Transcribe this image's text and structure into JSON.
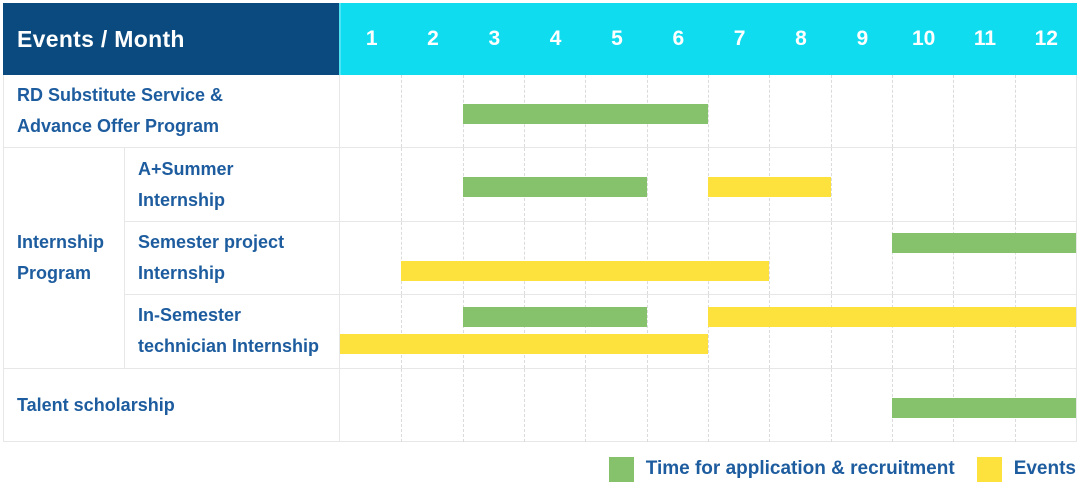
{
  "colors": {
    "navy": "#0B4A7E",
    "cyan": "#10DCF0",
    "cyan_divider": "#4DE3F3",
    "label_text": "#1D5C9E",
    "grid_solid": "#E7E7E7",
    "grid_dashed": "#DBDBDB",
    "white": "#FFFFFF"
  },
  "header": {
    "corner_label": "Events / Month"
  },
  "chart_data": {
    "type": "gantt",
    "x_axis": {
      "label": "Month",
      "range": [
        1,
        12
      ]
    },
    "months": [
      "1",
      "2",
      "3",
      "4",
      "5",
      "6",
      "7",
      "8",
      "9",
      "10",
      "11",
      "12"
    ],
    "series_colors": {
      "application": "#85C26B",
      "events": "#FDE23E"
    },
    "legend": [
      {
        "series": "application",
        "label": "Time for application & recruitment",
        "color": "#85C26B"
      },
      {
        "series": "events",
        "label": "Events",
        "color": "#FDE23E"
      }
    ],
    "group": {
      "label": "Internship Program",
      "label_lines": [
        "Internship",
        "Program"
      ],
      "covers_rows": [
        1,
        2,
        3
      ]
    },
    "rows": [
      {
        "label": "RD Substitute Service & Advance Offer Program",
        "label_lines": [
          "RD Substitute Service &",
          "Advance Offer Program"
        ],
        "lines": 1,
        "bars": [
          {
            "series": "application",
            "start_month": 3,
            "end_month": 6,
            "line": 0
          }
        ]
      },
      {
        "label": "A+Summer Internship",
        "label_lines": [
          "A+Summer",
          "Internship"
        ],
        "lines": 1,
        "bars": [
          {
            "series": "application",
            "start_month": 3,
            "end_month": 5,
            "line": 0
          },
          {
            "series": "events",
            "start_month": 7,
            "end_month": 8,
            "line": 0
          }
        ]
      },
      {
        "label": "Semester project Internship",
        "label_lines": [
          "Semester project",
          "Internship"
        ],
        "lines": 2,
        "bars": [
          {
            "series": "application",
            "start_month": 10,
            "end_month": 12,
            "line": 0
          },
          {
            "series": "events",
            "start_month": 2,
            "end_month": 7,
            "line": 1
          }
        ]
      },
      {
        "label": "In-Semester technician Internship",
        "label_lines": [
          "In-Semester",
          "technician Internship"
        ],
        "lines": 2,
        "bars": [
          {
            "series": "application",
            "start_month": 3,
            "end_month": 5,
            "line": 0
          },
          {
            "series": "events",
            "start_month": 7,
            "end_month": 12,
            "line": 0
          },
          {
            "series": "events",
            "start_month": 1,
            "end_month": 6,
            "line": 1
          }
        ]
      },
      {
        "label": "Talent scholarship",
        "label_lines": [
          "Talent scholarship"
        ],
        "lines": 1,
        "bars": [
          {
            "series": "application",
            "start_month": 10,
            "end_month": 12,
            "line": 0
          }
        ]
      }
    ]
  }
}
